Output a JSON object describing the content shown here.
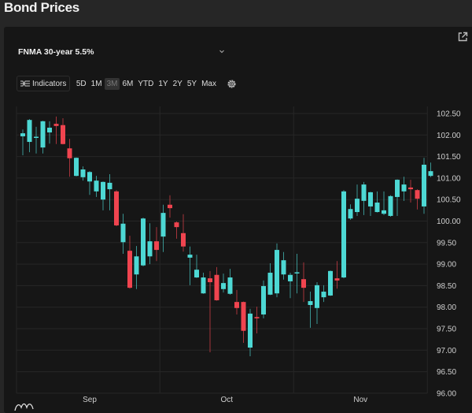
{
  "page": {
    "title": "Bond Prices"
  },
  "widget": {
    "symbol": "FNMA 30-year 5.5%",
    "indicators_label": "Indicators",
    "ranges": [
      "5D",
      "1M",
      "3M",
      "6M",
      "YTD",
      "1Y",
      "2Y",
      "5Y",
      "Max"
    ],
    "selected_range": "3M",
    "icons": {
      "export": "external-link-icon",
      "dropdown": "chevron-down-icon",
      "indicators": "indicators-icon",
      "settings": "gear-icon",
      "logo": "tradingview-logo"
    }
  },
  "chart_data": {
    "type": "candlestick",
    "title": "",
    "ylim": [
      96.0,
      102.5
    ],
    "yticks": [
      "96.00",
      "96.50",
      "97.00",
      "97.50",
      "98.00",
      "98.50",
      "99.00",
      "99.50",
      "100.00",
      "100.50",
      "101.00",
      "101.50",
      "102.00",
      "102.50"
    ],
    "xticks": [
      {
        "label": "Sep",
        "index": 10
      },
      {
        "label": "Oct",
        "index": 30.5
      },
      {
        "label": "Nov",
        "index": 50.5
      }
    ],
    "grid": true,
    "colors": {
      "up": "#4dd8d4",
      "down": "#f0444f",
      "grid": "#262626"
    },
    "ohlc": [
      [
        101.97,
        102.13,
        101.53,
        102.04
      ],
      [
        101.84,
        102.37,
        101.6,
        102.35
      ],
      [
        101.94,
        102.19,
        101.57,
        101.96
      ],
      [
        101.71,
        102.33,
        101.57,
        102.32
      ],
      [
        102.06,
        102.32,
        101.8,
        102.17
      ],
      [
        102.26,
        102.43,
        101.79,
        102.21
      ],
      [
        102.23,
        102.39,
        101.78,
        101.79
      ],
      [
        101.69,
        101.91,
        101.03,
        101.46
      ],
      [
        101.05,
        101.48,
        101.04,
        101.47
      ],
      [
        101.02,
        101.27,
        100.94,
        101.2
      ],
      [
        100.92,
        101.16,
        100.61,
        101.14
      ],
      [
        100.69,
        101.05,
        100.56,
        100.94
      ],
      [
        100.5,
        100.92,
        100.25,
        100.91
      ],
      [
        100.74,
        101.09,
        100.25,
        100.89
      ],
      [
        100.69,
        100.72,
        99.88,
        99.9
      ],
      [
        99.51,
        100.17,
        99.24,
        99.94
      ],
      [
        99.31,
        99.66,
        98.43,
        98.45
      ],
      [
        98.76,
        99.42,
        98.42,
        99.18
      ],
      [
        98.97,
        100.08,
        98.95,
        100.06
      ],
      [
        99.18,
        99.95,
        99.0,
        99.53
      ],
      [
        99.53,
        99.86,
        99.07,
        99.33
      ],
      [
        99.64,
        100.38,
        99.28,
        100.19
      ],
      [
        100.38,
        100.6,
        100.08,
        100.3
      ],
      [
        99.97,
        99.99,
        99.59,
        99.86
      ],
      [
        99.72,
        100.16,
        99.29,
        99.41
      ],
      [
        99.15,
        99.41,
        98.51,
        99.22
      ],
      [
        98.69,
        99.22,
        98.68,
        98.87
      ],
      [
        98.32,
        98.8,
        98.31,
        98.69
      ],
      [
        98.67,
        98.84,
        96.95,
        98.58
      ],
      [
        98.75,
        98.93,
        98.15,
        98.16
      ],
      [
        98.42,
        98.78,
        98.34,
        98.56
      ],
      [
        98.31,
        98.89,
        98.29,
        98.69
      ],
      [
        98.12,
        98.4,
        97.83,
        97.98
      ],
      [
        98.12,
        98.13,
        97.17,
        97.45
      ],
      [
        97.06,
        97.96,
        96.86,
        97.85
      ],
      [
        97.77,
        98.01,
        97.39,
        97.74
      ],
      [
        97.83,
        98.62,
        97.74,
        98.49
      ],
      [
        98.29,
        99.02,
        98.28,
        98.8
      ],
      [
        98.32,
        99.48,
        98.23,
        99.33
      ],
      [
        98.76,
        99.28,
        98.64,
        99.09
      ],
      [
        98.6,
        98.8,
        98.21,
        98.75
      ],
      [
        98.79,
        99.24,
        98.32,
        98.81
      ],
      [
        98.65,
        99.04,
        98.12,
        98.45
      ],
      [
        98.05,
        98.36,
        97.52,
        98.14
      ],
      [
        97.98,
        98.58,
        97.61,
        98.51
      ],
      [
        98.23,
        98.51,
        98.12,
        98.36
      ],
      [
        98.27,
        98.85,
        98.26,
        98.84
      ],
      [
        98.67,
        99.07,
        98.43,
        98.62
      ],
      [
        98.69,
        100.72,
        98.67,
        100.69
      ],
      [
        100.06,
        100.39,
        100.03,
        100.28
      ],
      [
        100.21,
        100.85,
        100.12,
        100.52
      ],
      [
        100.47,
        100.91,
        100.14,
        100.85
      ],
      [
        100.34,
        100.68,
        100.12,
        100.67
      ],
      [
        100.21,
        100.69,
        100.2,
        100.43
      ],
      [
        100.17,
        100.69,
        100.14,
        100.25
      ],
      [
        100.12,
        100.6,
        100.1,
        100.58
      ],
      [
        100.56,
        100.97,
        100.12,
        100.96
      ],
      [
        100.69,
        101.03,
        100.47,
        100.85
      ],
      [
        100.78,
        100.96,
        100.43,
        100.74
      ],
      [
        100.72,
        100.74,
        100.27,
        100.52
      ],
      [
        100.34,
        101.47,
        100.17,
        101.31
      ],
      [
        101.05,
        101.36,
        101.02,
        101.16
      ]
    ]
  }
}
